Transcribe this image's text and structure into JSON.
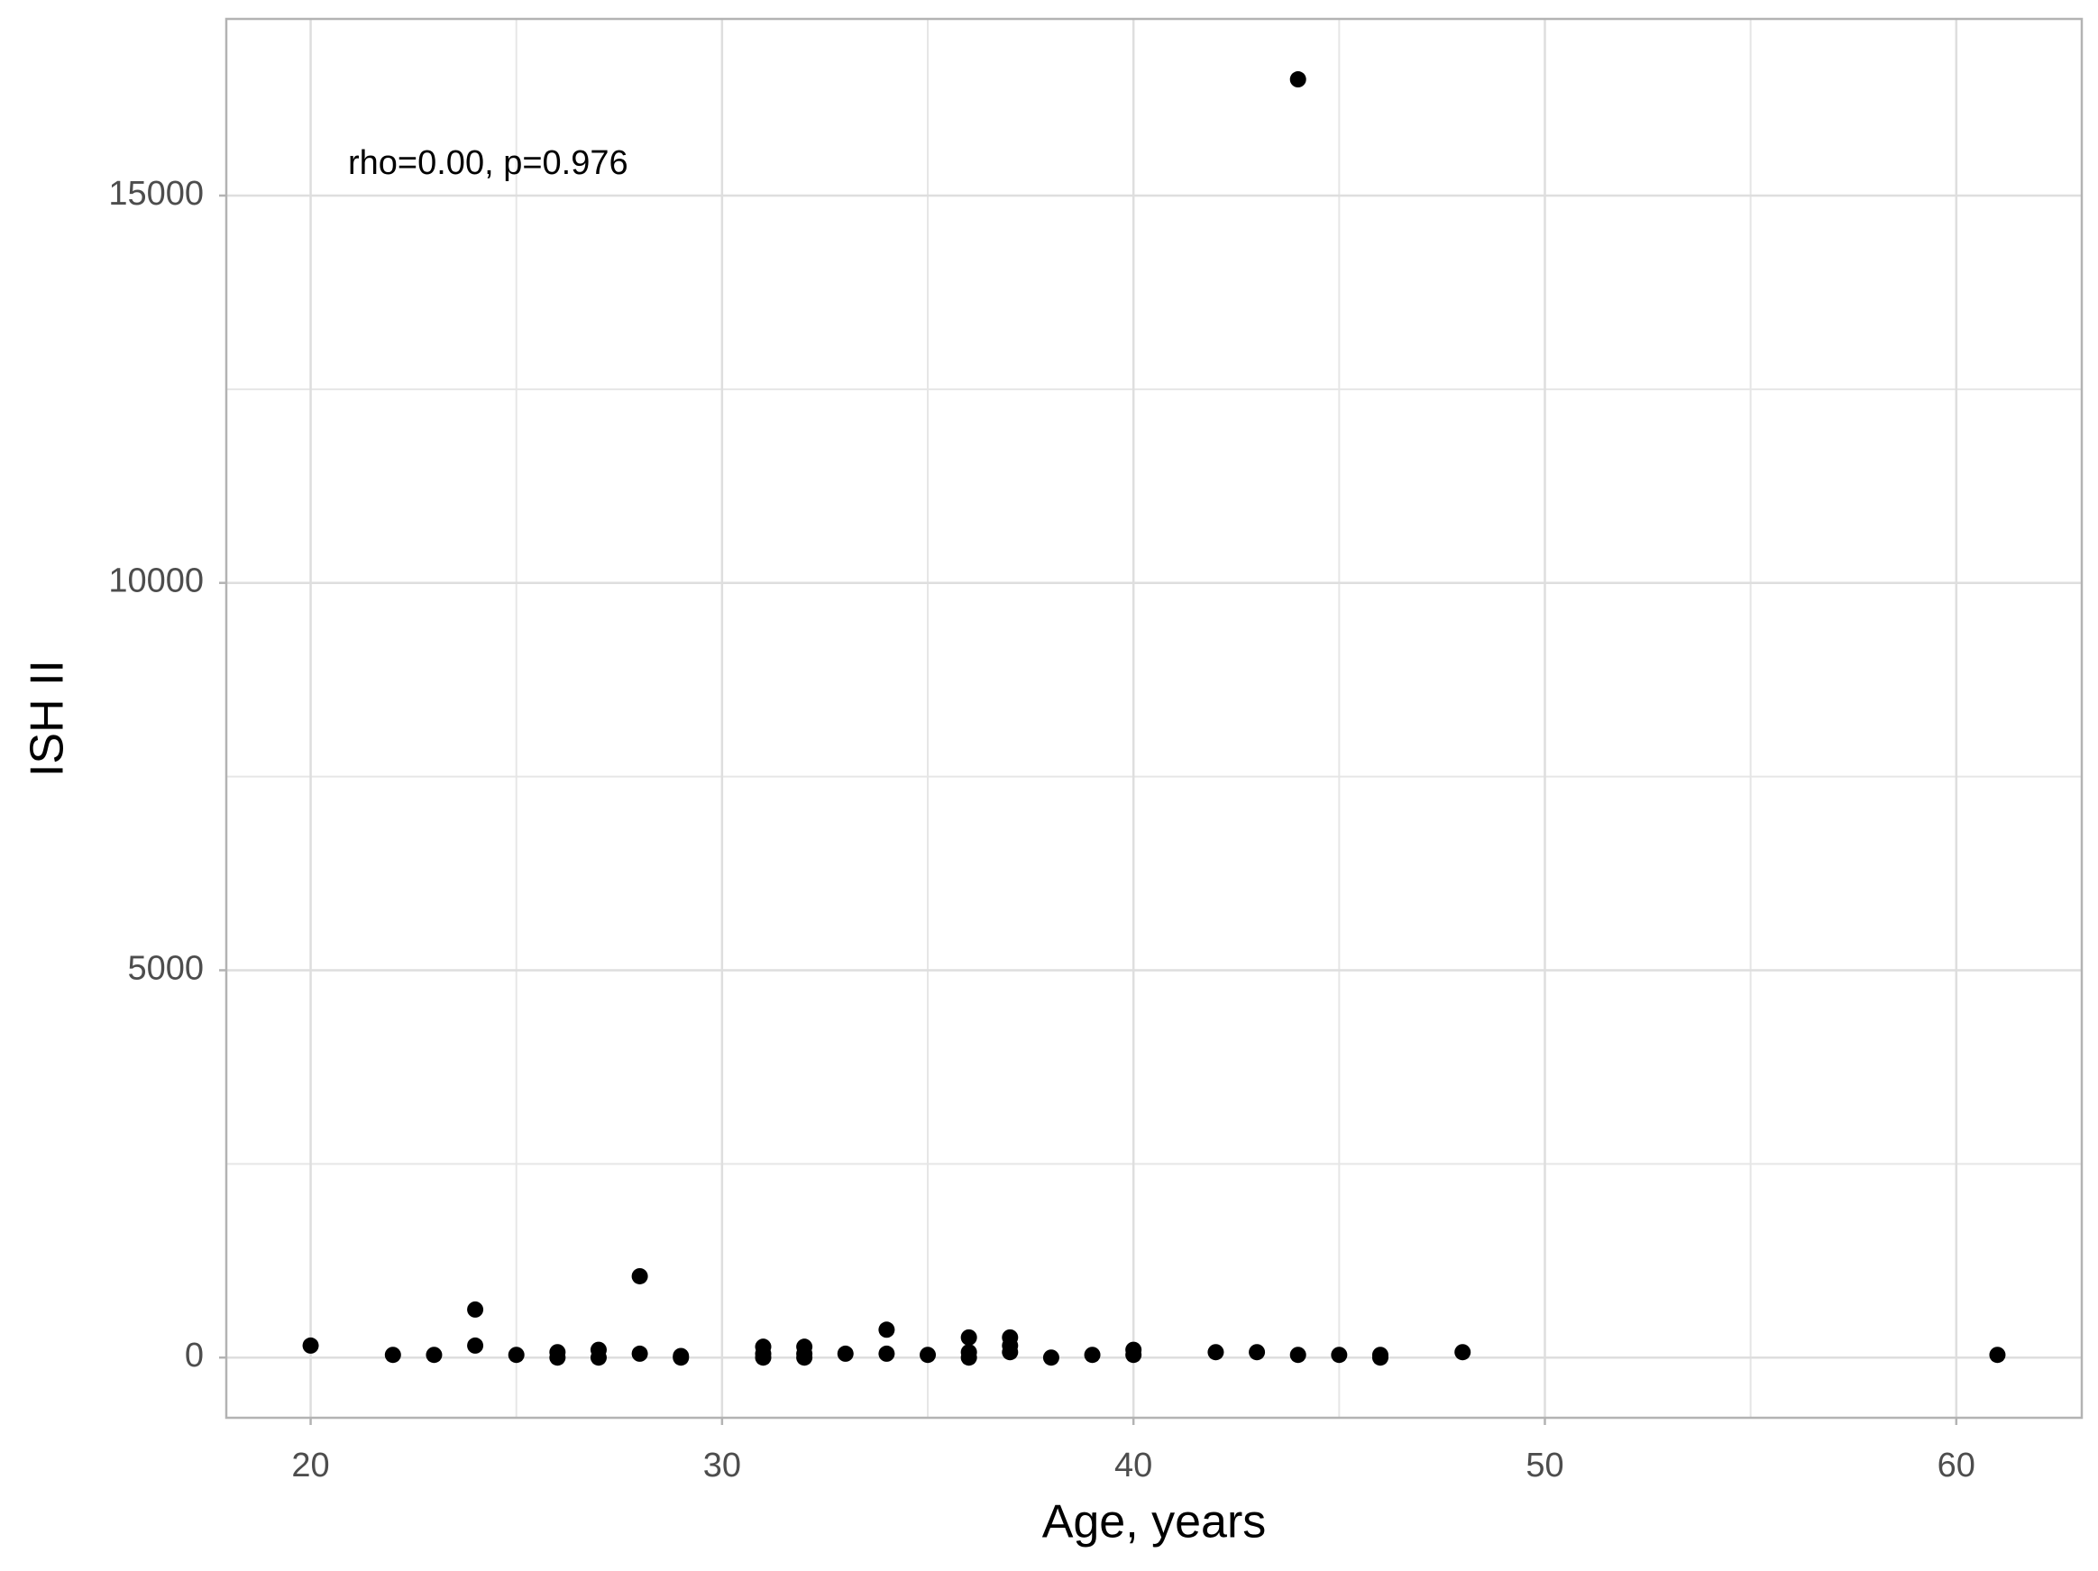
{
  "chart_data": {
    "type": "scatter",
    "x_label": "Age, years",
    "y_label": "ISH II",
    "annotation": "rho=0.00, p=0.976",
    "color": "#000000",
    "grid": true,
    "xlim": [
      17.95,
      63.05
    ],
    "ylim": [
      -777,
      17280
    ],
    "xticks": [
      20,
      30,
      40,
      50,
      60
    ],
    "yticks": [
      0,
      5000,
      10000,
      15000
    ],
    "xminorticks": [
      25,
      35,
      45,
      55
    ],
    "yminorticks": [
      2500,
      7500,
      12500
    ],
    "x": [
      20,
      22,
      23,
      24,
      24,
      25,
      26,
      26,
      27,
      27,
      28,
      28,
      29,
      29,
      31,
      31,
      31,
      32,
      32,
      32,
      33,
      34,
      34,
      35,
      36,
      36,
      36,
      37,
      37,
      37,
      38,
      39,
      40,
      40,
      42,
      43,
      44,
      44,
      45,
      46,
      46,
      48,
      61
    ],
    "values": [
      155,
      35,
      35,
      620,
      155,
      35,
      70,
      0,
      100,
      0,
      1050,
      50,
      20,
      0,
      140,
      50,
      0,
      140,
      50,
      0,
      50,
      360,
      50,
      35,
      260,
      70,
      0,
      260,
      155,
      70,
      0,
      35,
      100,
      35,
      70,
      70,
      35,
      16500,
      35,
      35,
      0,
      70,
      35
    ]
  }
}
